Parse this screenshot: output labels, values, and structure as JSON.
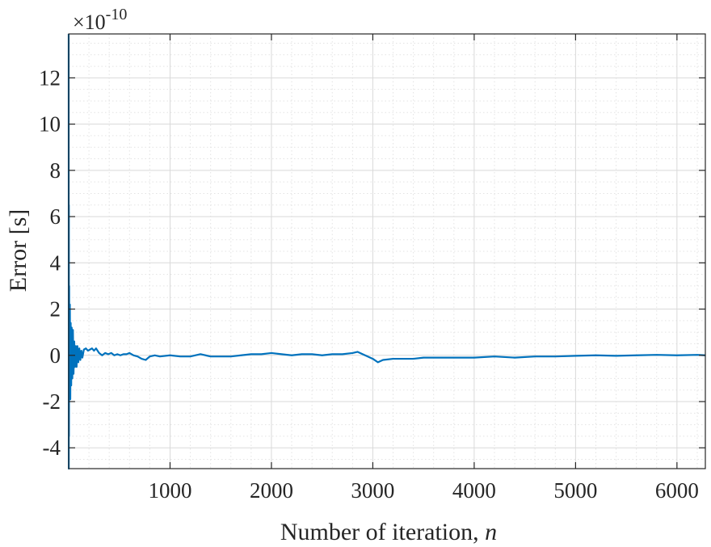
{
  "chart_data": {
    "type": "line",
    "xlabel_text": "Number of iteration, ",
    "xlabel_var": "n",
    "ylabel": "Error [s]",
    "y_exponent_prefix": "×10",
    "y_exponent_power": "-10",
    "xlim": [
      0,
      6280
    ],
    "ylim": [
      -4.9,
      13.9
    ],
    "xticks": [
      1000,
      2000,
      3000,
      4000,
      5000,
      6000
    ],
    "yticks": [
      -4,
      -2,
      0,
      2,
      4,
      6,
      8,
      10,
      12
    ],
    "grid": true,
    "minor_grid": true,
    "line_color": "#0072BD",
    "series": [
      {
        "x": [
          0,
          1,
          2,
          3,
          5,
          8,
          12,
          16,
          20,
          25,
          30,
          36,
          42,
          48,
          55,
          62,
          70,
          78,
          86,
          95,
          105,
          115,
          125,
          135,
          150,
          170,
          190,
          210,
          230,
          250,
          270,
          300,
          330,
          360,
          390,
          420,
          450,
          480,
          510,
          540,
          570,
          600,
          640,
          680,
          720,
          760,
          800,
          850,
          900,
          1000,
          1100,
          1200,
          1300,
          1400,
          1500,
          1600,
          1700,
          1800,
          1900,
          2000,
          2100,
          2200,
          2300,
          2400,
          2500,
          2600,
          2700,
          2800,
          2850,
          2900,
          2950,
          3000,
          3050,
          3100,
          3200,
          3300,
          3400,
          3500,
          3600,
          3700,
          3800,
          3900,
          4000,
          4200,
          4400,
          4600,
          4800,
          5000,
          5200,
          5400,
          5600,
          5800,
          6000,
          6200,
          6280
        ],
        "y": [
          13.9,
          -4.9,
          6.5,
          -3.5,
          3.0,
          -1.8,
          2.2,
          -1.9,
          1.4,
          -1.3,
          1.2,
          -1.0,
          1.1,
          -0.8,
          0.6,
          -0.5,
          0.4,
          -0.5,
          0.4,
          -0.3,
          0.3,
          -0.2,
          0.2,
          -0.1,
          0.25,
          0.3,
          0.2,
          0.25,
          0.3,
          0.2,
          0.3,
          0.1,
          0.0,
          0.1,
          0.05,
          0.1,
          0.0,
          0.05,
          0.0,
          0.05,
          0.05,
          0.1,
          0.0,
          -0.05,
          -0.15,
          -0.2,
          -0.05,
          0.0,
          -0.05,
          0.0,
          -0.05,
          -0.05,
          0.05,
          -0.05,
          -0.05,
          -0.05,
          0.0,
          0.05,
          0.05,
          0.1,
          0.05,
          0.0,
          0.05,
          0.05,
          0.0,
          0.05,
          0.05,
          0.1,
          0.15,
          0.05,
          -0.05,
          -0.15,
          -0.3,
          -0.2,
          -0.15,
          -0.15,
          -0.15,
          -0.1,
          -0.1,
          -0.1,
          -0.1,
          -0.1,
          -0.1,
          -0.05,
          -0.1,
          -0.05,
          -0.05,
          -0.02,
          0.0,
          -0.02,
          0.0,
          0.02,
          0.0,
          0.02,
          0.0
        ]
      }
    ]
  }
}
